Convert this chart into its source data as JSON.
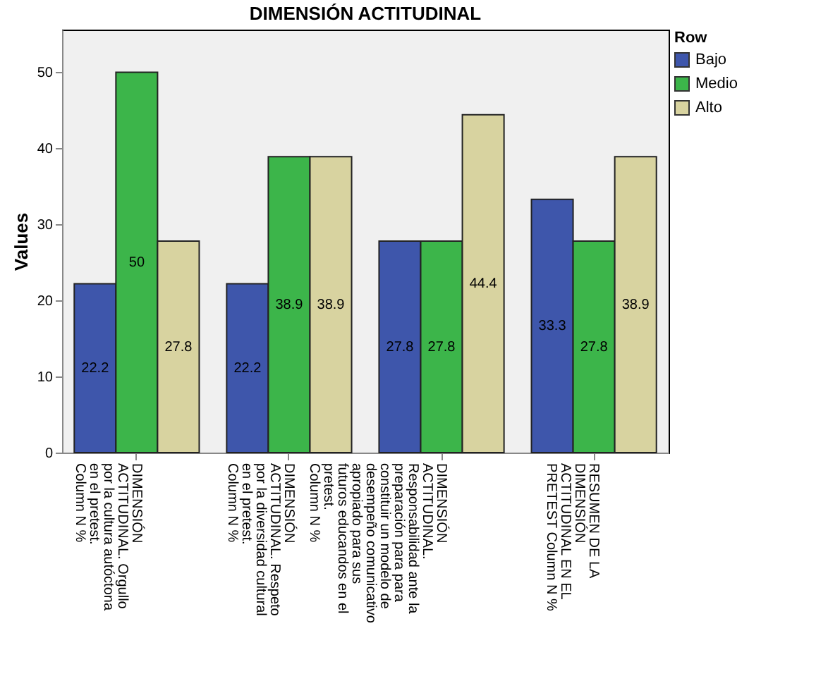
{
  "chart_data": {
    "type": "bar",
    "title": "DIMENSIÓN ACTITUDINAL",
    "ylabel": "Values",
    "legend_title": "Row",
    "categories": [
      "DIMENSIÓN\nACTITUDINAL. Orgullo\npor la cultura autóctona\nen el pretest.\nColumn N %",
      "DIMENSIÓN\nACTITUDINAL. Respeto\npor la diversidad cultural\nen el pretest.\nColumn N %",
      "DIMENSIÓN\nACTITUDINAL.\nResponsabilidad ante la\npreparación para para\nconstituir un modelo de\ndesempeño comunicativo\napropiado para sus\nfuturos educandos en el\npretest.\nColumn N %",
      "RESUMEN DE LA\nDIMENSIÓN\nACTITUDINAL EN EL\nPRETEST Column N %"
    ],
    "series": [
      {
        "name": "Bajo",
        "color": "#3e56ab",
        "values": [
          22.2,
          22.2,
          27.8,
          33.3
        ]
      },
      {
        "name": "Medio",
        "color": "#3cb54a",
        "values": [
          50,
          38.9,
          27.8,
          27.8
        ]
      },
      {
        "name": "Alto",
        "color": "#d8d3a0",
        "values": [
          27.8,
          38.9,
          44.4,
          38.9
        ]
      }
    ],
    "ylim": [
      0,
      55.6
    ],
    "yticks": [
      0,
      10,
      20,
      30,
      40,
      50
    ],
    "data_labels": true,
    "legend": "top right",
    "grid": false
  }
}
